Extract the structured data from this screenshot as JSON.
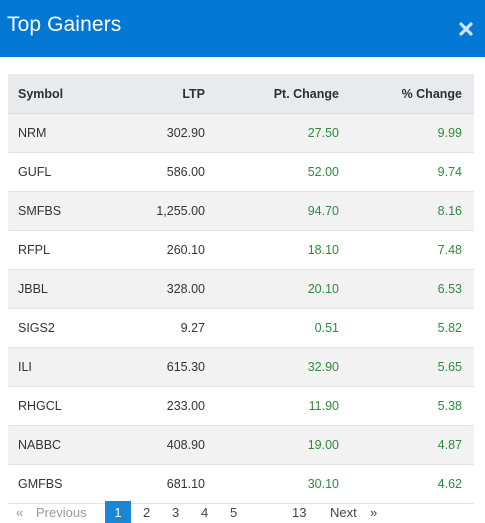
{
  "header": {
    "title": "Top Gainers",
    "close_icon": "close-icon"
  },
  "table": {
    "columns": [
      "Symbol",
      "LTP",
      "Pt. Change",
      "% Change"
    ],
    "rows": [
      {
        "symbol": "NRM",
        "ltp": "302.90",
        "pt_change": "27.50",
        "pct_change": "9.99"
      },
      {
        "symbol": "GUFL",
        "ltp": "586.00",
        "pt_change": "52.00",
        "pct_change": "9.74"
      },
      {
        "symbol": "SMFBS",
        "ltp": "1,255.00",
        "pt_change": "94.70",
        "pct_change": "8.16"
      },
      {
        "symbol": "RFPL",
        "ltp": "260.10",
        "pt_change": "18.10",
        "pct_change": "7.48"
      },
      {
        "symbol": "JBBL",
        "ltp": "328.00",
        "pt_change": "20.10",
        "pct_change": "6.53"
      },
      {
        "symbol": "SIGS2",
        "ltp": "9.27",
        "pt_change": "0.51",
        "pct_change": "5.82"
      },
      {
        "symbol": "ILI",
        "ltp": "615.30",
        "pt_change": "32.90",
        "pct_change": "5.65"
      },
      {
        "symbol": "RHGCL",
        "ltp": "233.00",
        "pt_change": "11.90",
        "pct_change": "5.38"
      },
      {
        "symbol": "NABBC",
        "ltp": "408.90",
        "pt_change": "19.00",
        "pct_change": "4.87"
      },
      {
        "symbol": "GMFBS",
        "ltp": "681.10",
        "pt_change": "30.10",
        "pct_change": "4.62"
      }
    ]
  },
  "pagination": {
    "prev_arrow": "«",
    "previous": "Previous",
    "pages": [
      "1",
      "2",
      "3",
      "4",
      "5"
    ],
    "active_page": "1",
    "last_page": "13",
    "next": "Next",
    "next_arrow": "»"
  },
  "colors": {
    "header_bg": "#0277d4",
    "positive": "#2e8b3c",
    "active_page_bg": "#1b86d6"
  }
}
